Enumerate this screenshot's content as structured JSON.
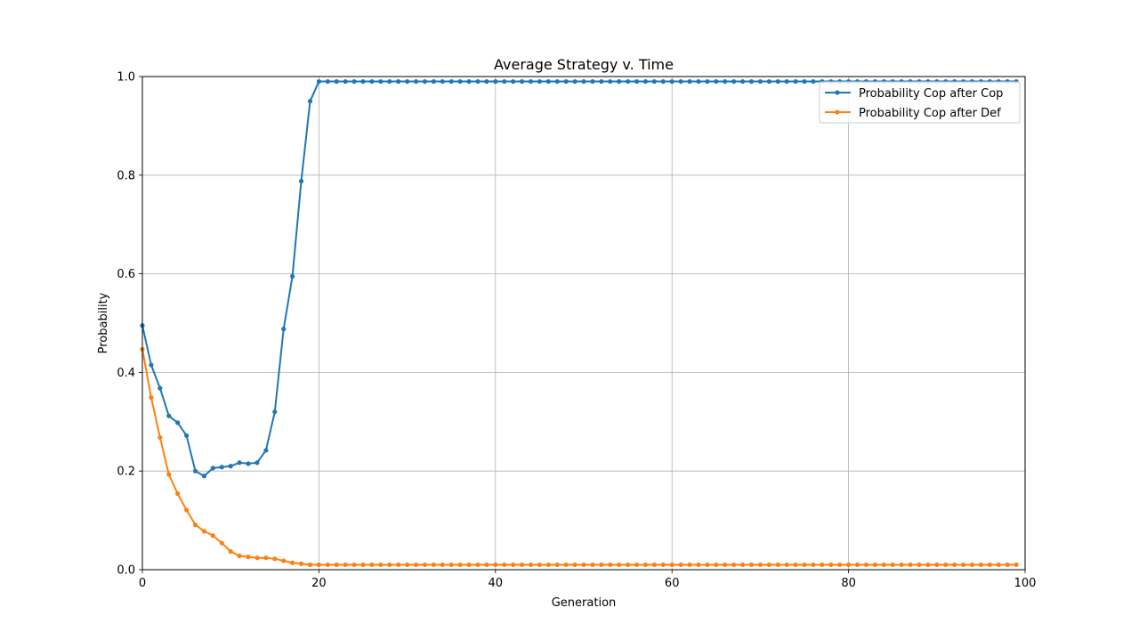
{
  "chart_data": {
    "type": "line",
    "title": "Average Strategy v. Time",
    "xlabel": "Generation",
    "ylabel": "Probability",
    "xlim": [
      0,
      100
    ],
    "ylim": [
      0,
      1
    ],
    "xticks": [
      0,
      20,
      40,
      60,
      80,
      100
    ],
    "yticks": [
      0.0,
      0.2,
      0.4,
      0.6,
      0.8,
      1.0
    ],
    "xtick_labels": [
      "0",
      "20",
      "40",
      "60",
      "80",
      "100"
    ],
    "ytick_labels": [
      "0.0",
      "0.2",
      "0.4",
      "0.6",
      "0.8",
      "1.0"
    ],
    "grid": true,
    "legend_position": "top-right",
    "x": [
      0,
      1,
      2,
      3,
      4,
      5,
      6,
      7,
      8,
      9,
      10,
      11,
      12,
      13,
      14,
      15,
      16,
      17,
      18,
      19,
      20,
      21,
      22,
      23,
      24,
      25,
      26,
      27,
      28,
      29,
      30,
      31,
      32,
      33,
      34,
      35,
      36,
      37,
      38,
      39,
      40,
      41,
      42,
      43,
      44,
      45,
      46,
      47,
      48,
      49,
      50,
      51,
      52,
      53,
      54,
      55,
      56,
      57,
      58,
      59,
      60,
      61,
      62,
      63,
      64,
      65,
      66,
      67,
      68,
      69,
      70,
      71,
      72,
      73,
      74,
      75,
      76,
      77,
      78,
      79,
      80,
      81,
      82,
      83,
      84,
      85,
      86,
      87,
      88,
      89,
      90,
      91,
      92,
      93,
      94,
      95,
      96,
      97,
      98,
      99
    ],
    "series": [
      {
        "name": "Probability Cop after Cop",
        "color": "#1f77b4",
        "values": [
          0.495,
          0.415,
          0.368,
          0.312,
          0.298,
          0.272,
          0.2,
          0.19,
          0.206,
          0.208,
          0.21,
          0.217,
          0.215,
          0.217,
          0.242,
          0.32,
          0.488,
          0.595,
          0.788,
          0.95,
          0.99,
          0.99,
          0.99,
          0.99,
          0.99,
          0.99,
          0.99,
          0.99,
          0.99,
          0.99,
          0.99,
          0.99,
          0.99,
          0.99,
          0.99,
          0.99,
          0.99,
          0.99,
          0.99,
          0.99,
          0.99,
          0.99,
          0.99,
          0.99,
          0.99,
          0.99,
          0.99,
          0.99,
          0.99,
          0.99,
          0.99,
          0.99,
          0.99,
          0.99,
          0.99,
          0.99,
          0.99,
          0.99,
          0.99,
          0.99,
          0.99,
          0.99,
          0.99,
          0.99,
          0.99,
          0.99,
          0.99,
          0.99,
          0.99,
          0.99,
          0.99,
          0.99,
          0.99,
          0.99,
          0.99,
          0.99,
          0.99,
          0.99,
          0.99,
          0.99,
          0.99,
          0.99,
          0.99,
          0.99,
          0.99,
          0.99,
          0.99,
          0.99,
          0.99,
          0.99,
          0.99,
          0.99,
          0.99,
          0.99,
          0.99,
          0.99,
          0.99,
          0.99,
          0.99,
          0.99
        ]
      },
      {
        "name": "Probability Cop after Def",
        "color": "#ff7f0e",
        "values": [
          0.447,
          0.349,
          0.268,
          0.193,
          0.154,
          0.121,
          0.091,
          0.078,
          0.069,
          0.054,
          0.037,
          0.028,
          0.026,
          0.024,
          0.024,
          0.022,
          0.018,
          0.014,
          0.012,
          0.01,
          0.01,
          0.01,
          0.01,
          0.01,
          0.01,
          0.01,
          0.01,
          0.01,
          0.01,
          0.01,
          0.01,
          0.01,
          0.01,
          0.01,
          0.01,
          0.01,
          0.01,
          0.01,
          0.01,
          0.01,
          0.01,
          0.01,
          0.01,
          0.01,
          0.01,
          0.01,
          0.01,
          0.01,
          0.01,
          0.01,
          0.01,
          0.01,
          0.01,
          0.01,
          0.01,
          0.01,
          0.01,
          0.01,
          0.01,
          0.01,
          0.01,
          0.01,
          0.01,
          0.01,
          0.01,
          0.01,
          0.01,
          0.01,
          0.01,
          0.01,
          0.01,
          0.01,
          0.01,
          0.01,
          0.01,
          0.01,
          0.01,
          0.01,
          0.01,
          0.01,
          0.01,
          0.01,
          0.01,
          0.01,
          0.01,
          0.01,
          0.01,
          0.01,
          0.01,
          0.01,
          0.01,
          0.01,
          0.01,
          0.01,
          0.01,
          0.01,
          0.01,
          0.01,
          0.01,
          0.01
        ]
      }
    ]
  }
}
